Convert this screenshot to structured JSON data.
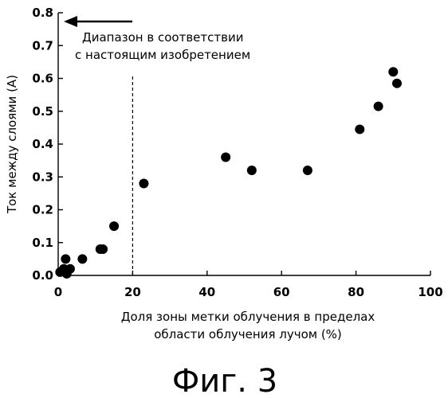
{
  "chart_data": {
    "type": "scatter",
    "xlabel_lines": [
      "Доля зоны метки облучения в пределах",
      "области облучения лучом (%)"
    ],
    "ylabel": "Ток между слоями (A)",
    "xlim": [
      0,
      100
    ],
    "ylim": [
      0,
      0.8
    ],
    "x_ticks": [
      "0",
      "20",
      "40",
      "60",
      "80",
      "100"
    ],
    "y_ticks": [
      "0.0",
      "0.1",
      "0.2",
      "0.3",
      "0.4",
      "0.5",
      "0.6",
      "0.7",
      "0.8"
    ],
    "series": [
      {
        "color": "#000000",
        "points": [
          {
            "x": 0.5,
            "y": 0.01
          },
          {
            "x": 1.5,
            "y": 0.02
          },
          {
            "x": 2,
            "y": 0.05
          },
          {
            "x": 2.3,
            "y": 0.005
          },
          {
            "x": 3.2,
            "y": 0.02
          },
          {
            "x": 6.5,
            "y": 0.05
          },
          {
            "x": 11.3,
            "y": 0.08
          },
          {
            "x": 12,
            "y": 0.08
          },
          {
            "x": 15,
            "y": 0.15
          },
          {
            "x": 23,
            "y": 0.28
          },
          {
            "x": 45,
            "y": 0.36
          },
          {
            "x": 52,
            "y": 0.32
          },
          {
            "x": 67,
            "y": 0.32
          },
          {
            "x": 81,
            "y": 0.445
          },
          {
            "x": 86,
            "y": 0.515
          },
          {
            "x": 90,
            "y": 0.62
          },
          {
            "x": 91,
            "y": 0.585
          }
        ]
      }
    ],
    "threshold_x": 20,
    "annotation_lines": [
      "Диапазон в соответствии",
      "с настоящим изобретением"
    ]
  },
  "caption": "Фиг. 3"
}
